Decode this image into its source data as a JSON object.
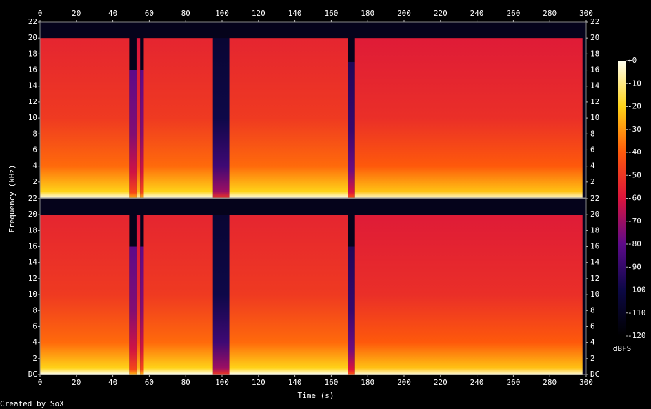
{
  "chart_data": {
    "type": "spectrogram",
    "xlabel": "Time (s)",
    "ylabel": "Frequency (kHz)",
    "credit": "Created by SoX",
    "xlim": [
      0,
      300
    ],
    "xticks": [
      0,
      20,
      40,
      60,
      80,
      100,
      120,
      140,
      160,
      180,
      200,
      220,
      240,
      260,
      280,
      300
    ],
    "ylim": [
      0,
      22
    ],
    "channels": [
      {
        "yticks": [
          2,
          4,
          6,
          8,
          10,
          12,
          14,
          16,
          18,
          20,
          22
        ],
        "segments": [
          {
            "start": 0,
            "end": 49,
            "cutoff_khz": 20,
            "level_dbfs": -55
          },
          {
            "start": 49,
            "end": 53,
            "cutoff_khz": 16,
            "level_dbfs": -80
          },
          {
            "start": 53,
            "end": 55,
            "cutoff_khz": 20,
            "level_dbfs": -60
          },
          {
            "start": 55,
            "end": 57,
            "cutoff_khz": 16,
            "level_dbfs": -80
          },
          {
            "start": 57,
            "end": 95,
            "cutoff_khz": 20,
            "level_dbfs": -55
          },
          {
            "start": 95,
            "end": 104,
            "cutoff_khz": 20,
            "level_dbfs": -105
          },
          {
            "start": 104,
            "end": 169,
            "cutoff_khz": 20,
            "level_dbfs": -55
          },
          {
            "start": 169,
            "end": 173,
            "cutoff_khz": 17,
            "level_dbfs": -95
          },
          {
            "start": 173,
            "end": 298,
            "cutoff_khz": 20,
            "level_dbfs": -58
          }
        ]
      },
      {
        "yticks": [
          {
            "value": 0,
            "label": "DC"
          },
          2,
          4,
          6,
          8,
          10,
          12,
          14,
          16,
          18,
          20,
          22
        ],
        "segments": [
          {
            "start": 0,
            "end": 49,
            "cutoff_khz": 20,
            "level_dbfs": -55
          },
          {
            "start": 49,
            "end": 53,
            "cutoff_khz": 16,
            "level_dbfs": -80
          },
          {
            "start": 53,
            "end": 55,
            "cutoff_khz": 20,
            "level_dbfs": -60
          },
          {
            "start": 55,
            "end": 57,
            "cutoff_khz": 16,
            "level_dbfs": -80
          },
          {
            "start": 57,
            "end": 95,
            "cutoff_khz": 20,
            "level_dbfs": -55
          },
          {
            "start": 95,
            "end": 104,
            "cutoff_khz": 20,
            "level_dbfs": -105
          },
          {
            "start": 104,
            "end": 169,
            "cutoff_khz": 20,
            "level_dbfs": -55
          },
          {
            "start": 169,
            "end": 173,
            "cutoff_khz": 16,
            "level_dbfs": -95
          },
          {
            "start": 173,
            "end": 298,
            "cutoff_khz": 20,
            "level_dbfs": -58
          }
        ]
      }
    ],
    "colorbar": {
      "label": "dBFS",
      "clim": [
        -120,
        0
      ],
      "ticks": [
        {
          "value": 0,
          "label": "+0"
        },
        -10,
        -20,
        -30,
        -40,
        -50,
        -60,
        -70,
        -80,
        -90,
        -100,
        -110,
        -120
      ]
    }
  }
}
